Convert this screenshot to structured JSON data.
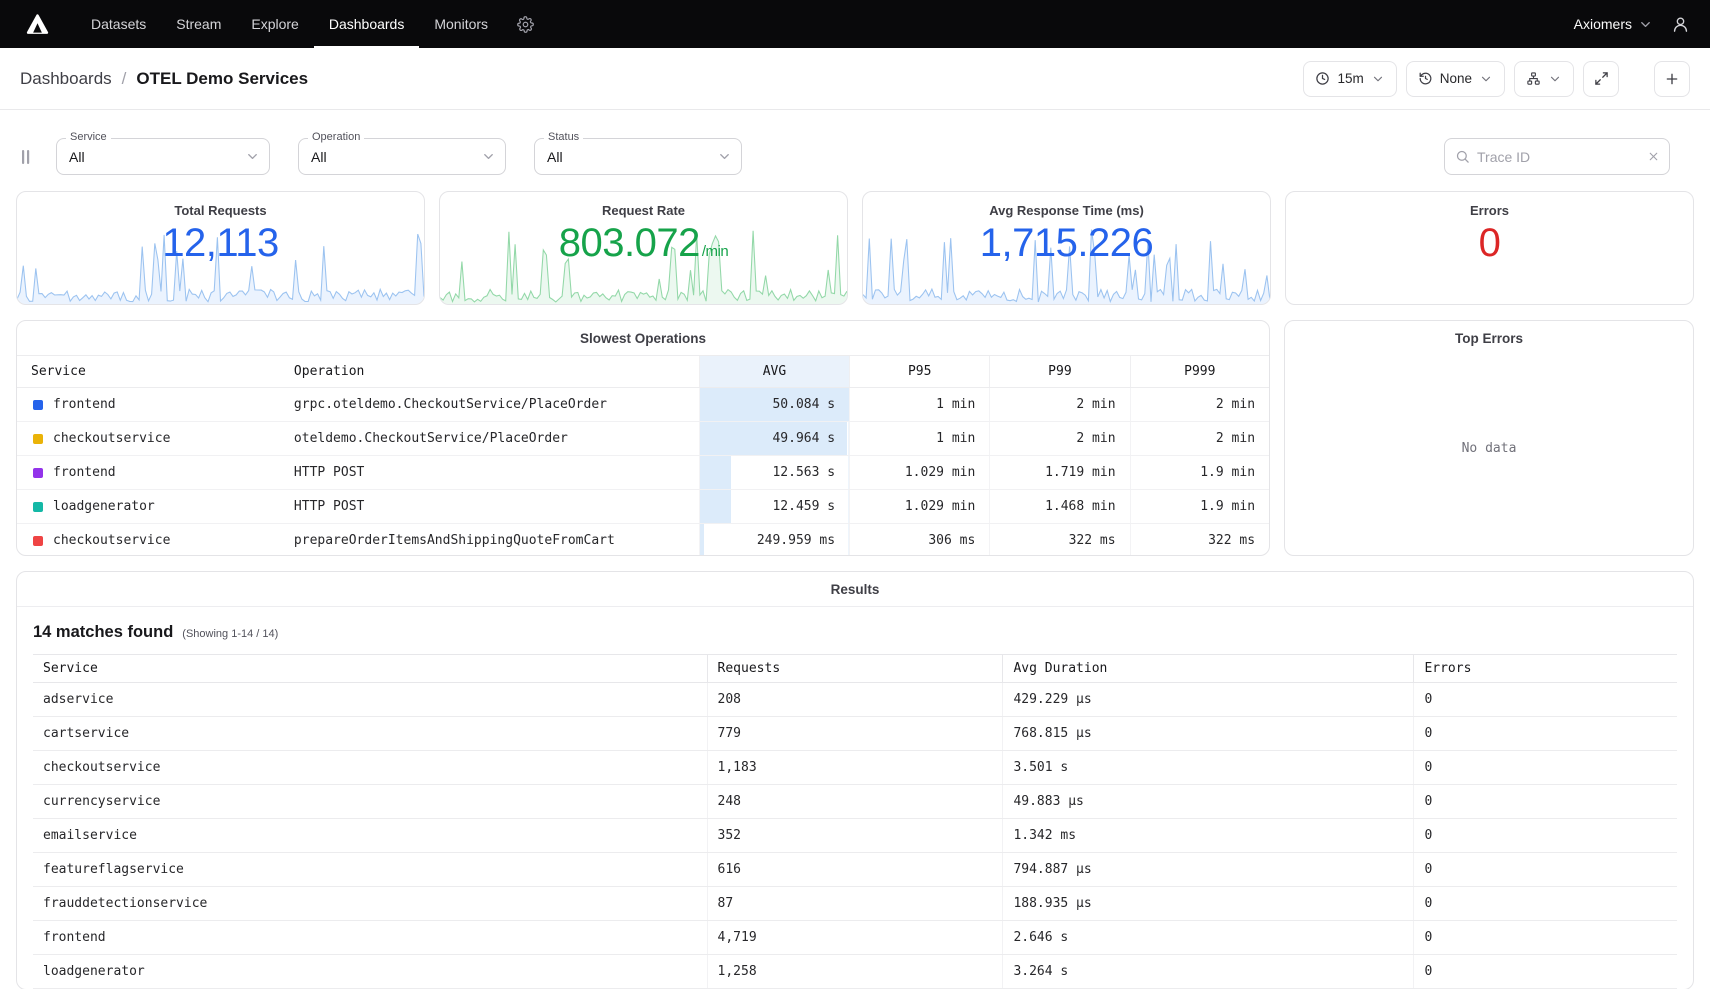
{
  "nav": {
    "items": [
      "Datasets",
      "Stream",
      "Explore",
      "Dashboards",
      "Monitors"
    ],
    "active": "Dashboards",
    "org": "Axiomers"
  },
  "header": {
    "breadcrumb_root": "Dashboards",
    "sep": "/",
    "title": "OTEL Demo Services",
    "time_range": "15m",
    "compare": "None"
  },
  "filters": {
    "service": {
      "label": "Service",
      "value": "All"
    },
    "operation": {
      "label": "Operation",
      "value": "All"
    },
    "status": {
      "label": "Status",
      "value": "All"
    },
    "trace_search_placeholder": "Trace ID"
  },
  "stats": [
    {
      "title": "Total Requests",
      "value": "12,113",
      "suffix": "",
      "color": "#2563eb",
      "spark": "blue",
      "spark_stroke": "#9cc3f0",
      "spark_fill": "#dbeafe"
    },
    {
      "title": "Request Rate",
      "value": "803.072",
      "suffix": "/min",
      "color": "#16a34a",
      "spark": "green",
      "spark_stroke": "#93d8a8",
      "spark_fill": "#dcf2e3"
    },
    {
      "title": "Avg Response Time (ms)",
      "value": "1,715.226",
      "suffix": "",
      "color": "#2563eb",
      "spark": "blue",
      "spark_stroke": "#9cc3f0",
      "spark_fill": "#dbeafe"
    },
    {
      "title": "Errors",
      "value": "0",
      "suffix": "",
      "color": "#dc2626",
      "spark": "none",
      "spark_stroke": "",
      "spark_fill": ""
    }
  ],
  "slowest_operations": {
    "title": "Slowest Operations",
    "heat_color": "#dcebfa",
    "columns": [
      "Service",
      "Operation",
      "AVG",
      "P95",
      "P99",
      "P999"
    ],
    "rows": [
      {
        "color": "#2563eb",
        "service": "frontend",
        "operation": "grpc.oteldemo.CheckoutService/PlaceOrder",
        "avg": "50.084 s",
        "avg_pct": 100,
        "p95": "1 min",
        "p99": "2 min",
        "p999": "2 min"
      },
      {
        "color": "#eab308",
        "service": "checkoutservice",
        "operation": "oteldemo.CheckoutService/PlaceOrder",
        "avg": "49.964 s",
        "avg_pct": 99,
        "p95": "1 min",
        "p99": "2 min",
        "p999": "2 min"
      },
      {
        "color": "#9333ea",
        "service": "frontend",
        "operation": "HTTP POST",
        "avg": "12.563 s",
        "avg_pct": 21,
        "p95": "1.029 min",
        "p99": "1.719 min",
        "p999": "1.9 min"
      },
      {
        "color": "#14b8a6",
        "service": "loadgenerator",
        "operation": "HTTP POST",
        "avg": "12.459 s",
        "avg_pct": 21,
        "p95": "1.029 min",
        "p99": "1.468 min",
        "p999": "1.9 min"
      },
      {
        "color": "#ef4444",
        "service": "checkoutservice",
        "operation": "prepareOrderItemsAndShippingQuoteFromCart",
        "avg": "249.959 ms",
        "avg_pct": 3,
        "p95": "306 ms",
        "p99": "322 ms",
        "p999": "322 ms"
      }
    ]
  },
  "top_errors": {
    "title": "Top Errors",
    "empty": "No data"
  },
  "results": {
    "title": "Results",
    "matches": "14 matches found",
    "showing": "(Showing 1-14 / 14)",
    "columns": [
      "Service",
      "Requests",
      "Avg Duration",
      "Errors"
    ],
    "rows": [
      [
        "adservice",
        "208",
        "429.229 μs",
        "0"
      ],
      [
        "cartservice",
        "779",
        "768.815 μs",
        "0"
      ],
      [
        "checkoutservice",
        "1,183",
        "3.501 s",
        "0"
      ],
      [
        "currencyservice",
        "248",
        "49.883 μs",
        "0"
      ],
      [
        "emailservice",
        "352",
        "1.342 ms",
        "0"
      ],
      [
        "featureflagservice",
        "616",
        "794.887 μs",
        "0"
      ],
      [
        "frauddetectionservice",
        "87",
        "188.935 μs",
        "0"
      ],
      [
        "frontend",
        "4,719",
        "2.646 s",
        "0"
      ],
      [
        "loadgenerator",
        "1,258",
        "3.264 s",
        "0"
      ]
    ]
  }
}
